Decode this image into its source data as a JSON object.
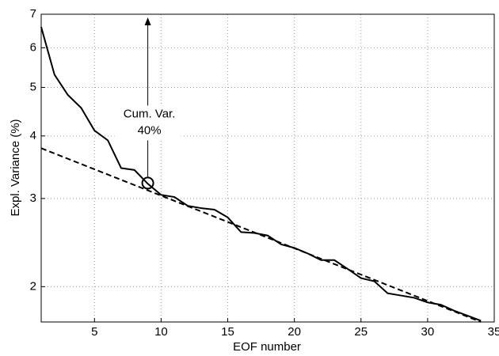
{
  "chart_data": {
    "type": "line",
    "xlabel": "EOF number",
    "ylabel": "Expl. Variance (%)",
    "x": [
      1,
      2,
      3,
      4,
      5,
      6,
      7,
      8,
      9,
      10,
      11,
      12,
      13,
      14,
      15,
      16,
      17,
      18,
      19,
      20,
      21,
      22,
      23,
      24,
      25,
      26,
      27,
      28,
      29,
      30,
      31,
      32,
      33,
      34
    ],
    "series": [
      {
        "color": "#000000",
        "style": "solid",
        "x": [
          1,
          2,
          3,
          4,
          5,
          6,
          7,
          8,
          9,
          10,
          11,
          12,
          13,
          14,
          15,
          16,
          17,
          18,
          19,
          20,
          21,
          22,
          23,
          24,
          25,
          26,
          27,
          28,
          29,
          30,
          31,
          32,
          33,
          34
        ],
        "values": [
          6.6,
          5.3,
          4.83,
          4.55,
          4.1,
          3.92,
          3.45,
          3.42,
          3.21,
          3.05,
          3.02,
          2.9,
          2.87,
          2.85,
          2.75,
          2.57,
          2.56,
          2.53,
          2.43,
          2.39,
          2.33,
          2.26,
          2.26,
          2.17,
          2.08,
          2.05,
          1.94,
          1.92,
          1.9,
          1.86,
          1.84,
          1.79,
          1.75,
          1.71
        ]
      },
      {
        "color": "#000000",
        "style": "dashed",
        "x": [
          1,
          34
        ],
        "values": [
          3.78,
          1.7
        ]
      }
    ],
    "annotation": {
      "text": [
        "Cum. Var.",
        "40%"
      ],
      "x": 9,
      "y": 3.22
    },
    "xlim": [
      1,
      35
    ],
    "xticks": [
      5,
      10,
      15,
      20,
      25,
      30,
      35
    ],
    "ylim": [
      1.7,
      7
    ],
    "yticks": [
      2,
      3,
      4,
      5,
      6,
      7
    ],
    "yscale": "log",
    "grid": true
  }
}
